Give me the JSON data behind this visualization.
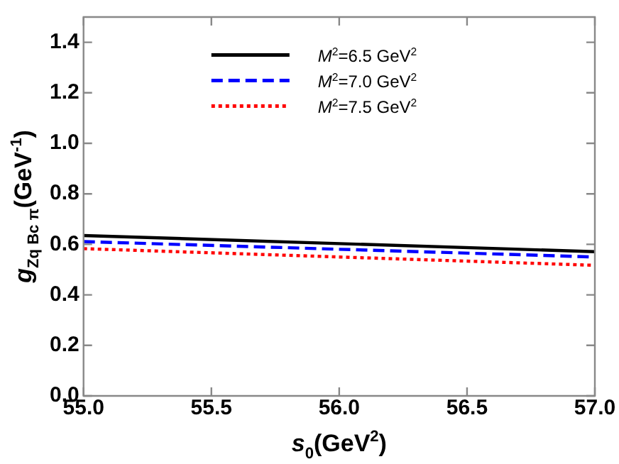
{
  "chart_data": {
    "type": "line",
    "xlabel": "s$_{0}$(GeV$^{2}$)",
    "ylabel": "g$_{Zq Bc π}$(GeV$^{-1}$)",
    "x": [
      55.0,
      57.0
    ],
    "series": [
      {
        "name": "M$^{2}$=6.5 GeV$^{2}$",
        "color": "#000000",
        "line_style": "solid",
        "values": [
          0.635,
          0.571
        ]
      },
      {
        "name": "M$^{2}$=7.0 GeV$^{2}$",
        "color": "#0000ff",
        "line_style": "dashed",
        "values": [
          0.611,
          0.55
        ]
      },
      {
        "name": "M$^{2}$=7.5 GeV$^{2}$",
        "color": "#ff0000",
        "line_style": "dotted",
        "values": [
          0.583,
          0.517
        ]
      }
    ],
    "xlim": [
      55.0,
      57.0
    ],
    "xticks": [
      {
        "value": 55,
        "label": "55.0"
      },
      55.5,
      {
        "value": 56,
        "label": "56.0"
      },
      56.5,
      {
        "value": 57,
        "label": "57.0"
      }
    ],
    "ylim": [
      0,
      1.5
    ],
    "yticks": [
      {
        "value": 0,
        "label": "0.0"
      },
      0.2,
      0.4,
      0.6,
      0.8,
      {
        "value": 1,
        "label": "1.0"
      },
      1.2,
      1.4
    ],
    "grid": false,
    "legend": "top",
    "marker": "none"
  }
}
